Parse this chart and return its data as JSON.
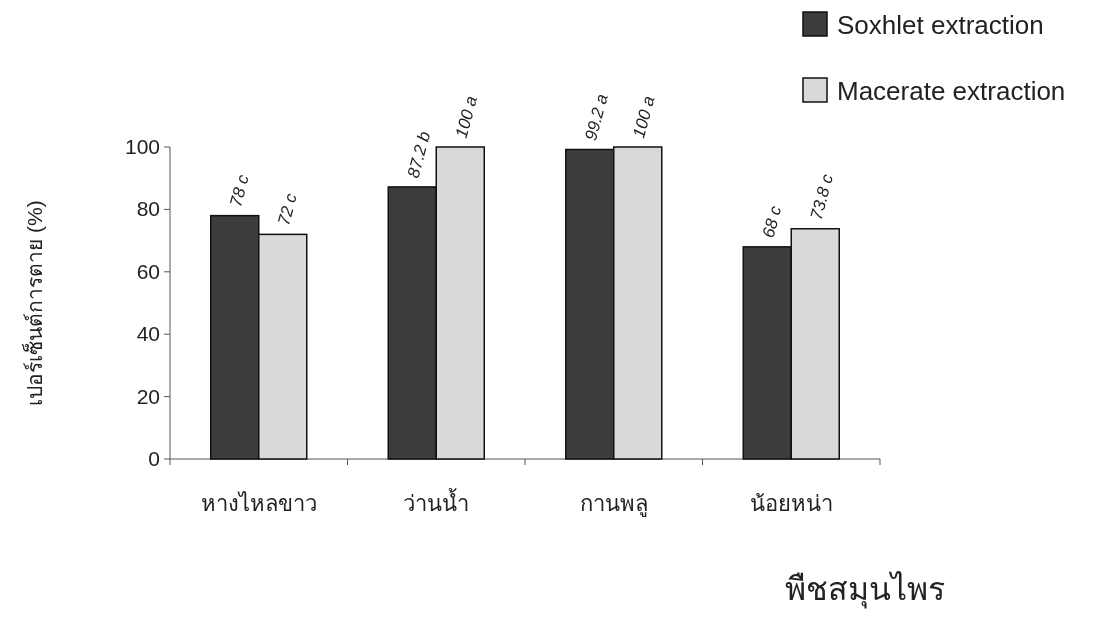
{
  "chart_data": {
    "type": "bar",
    "categories": [
      "หางไหลขาว",
      "ว่านน้ำ",
      "กานพลู",
      "น้อยหน่า"
    ],
    "series": [
      {
        "name": "Soxhlet extraction",
        "color": "#3c3c3c",
        "values": [
          78,
          87.2,
          99.2,
          68
        ],
        "value_labels": [
          "78 c",
          "87.2 b",
          "99.2 a",
          "68 c"
        ]
      },
      {
        "name": "Macerate extraction",
        "color": "#d9d9d9",
        "values": [
          72,
          100,
          100,
          73.8
        ],
        "value_labels": [
          "72 c",
          "100 a",
          "100 a",
          "73.8 c"
        ]
      }
    ],
    "ylabel": "เปอร์เซ็นต์การตาย (%)",
    "xlabel": "พืชสมุนไพร",
    "ylim": [
      0,
      100
    ],
    "yticks": [
      0,
      20,
      40,
      60,
      80,
      100
    ],
    "legend": "top right",
    "grid": false
  }
}
